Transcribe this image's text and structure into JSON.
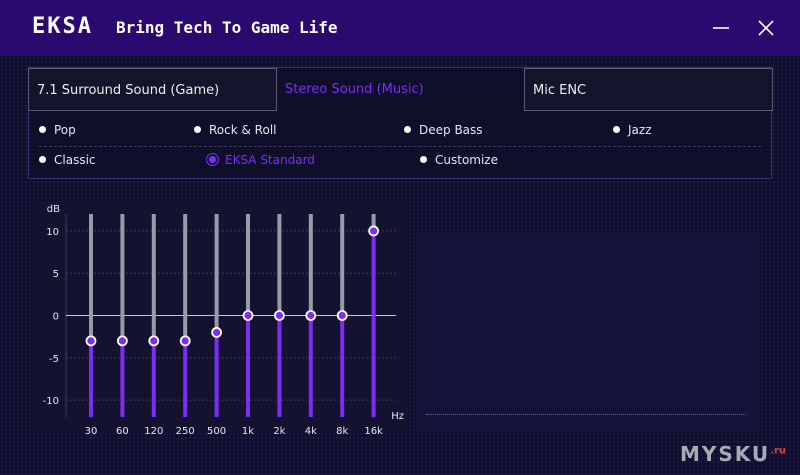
{
  "header": {
    "logo": "EKSA",
    "slogan": "Bring Tech To Game Life",
    "title_bar_color": "#2a0a6e"
  },
  "window_controls": {
    "minimize": "minimize-icon",
    "close": "close-icon"
  },
  "tabs": [
    {
      "label": "7.1 Surround Sound (Game)",
      "active": false
    },
    {
      "label": "Stereo Sound (Music)",
      "active": true
    },
    {
      "label": "Mic ENC",
      "active": false
    }
  ],
  "presets": [
    {
      "label": "Pop",
      "selected": false
    },
    {
      "label": "Rock & Roll",
      "selected": false
    },
    {
      "label": "Deep Bass",
      "selected": false
    },
    {
      "label": "Jazz",
      "selected": false
    },
    {
      "label": "Classic",
      "selected": false
    },
    {
      "label": "EKSA Standard",
      "selected": true
    },
    {
      "label": "Customize",
      "selected": false
    }
  ],
  "accent_color": "#7b2cf5",
  "equalizer": {
    "y_unit": "dB",
    "x_unit": "Hz",
    "y_range": [
      -12,
      12
    ],
    "y_ticks": [
      10,
      5,
      0,
      -5,
      -10
    ],
    "bands": [
      {
        "freq": "30",
        "gain": -3
      },
      {
        "freq": "60",
        "gain": -3
      },
      {
        "freq": "120",
        "gain": -3
      },
      {
        "freq": "250",
        "gain": -3
      },
      {
        "freq": "500",
        "gain": -2
      },
      {
        "freq": "1k",
        "gain": 0
      },
      {
        "freq": "2k",
        "gain": 0
      },
      {
        "freq": "4k",
        "gain": 0
      },
      {
        "freq": "8k",
        "gain": 0
      },
      {
        "freq": "16k",
        "gain": 10
      }
    ]
  },
  "watermark": {
    "text": "MYSKU",
    "suffix": ".ru"
  }
}
